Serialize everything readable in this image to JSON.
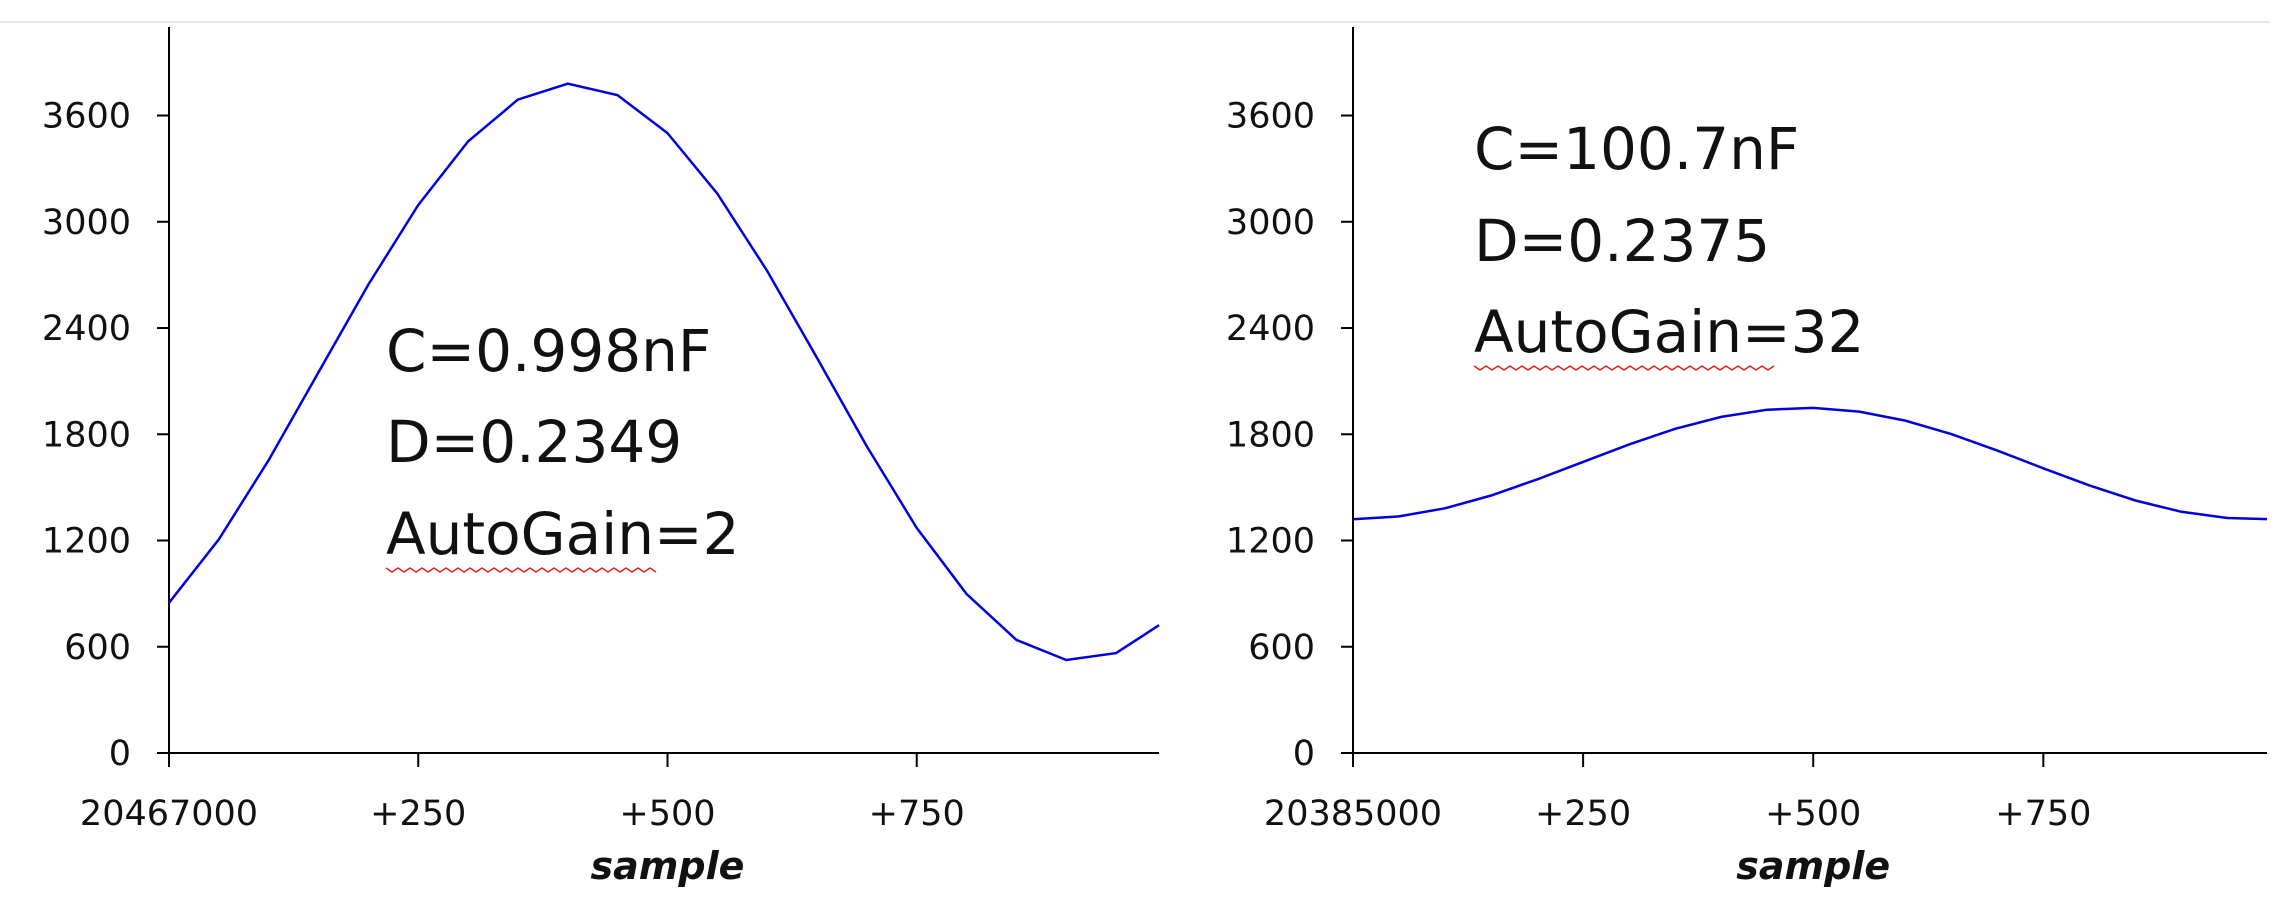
{
  "chart_data": [
    {
      "type": "line",
      "xlabel": "sample",
      "annotations": [
        "C=0.998nF",
        "D=0.2349",
        "AutoGain=2"
      ],
      "x": [
        20467000,
        20467050,
        20467100,
        20467150,
        20467200,
        20467250,
        20467300,
        20467350,
        20467400,
        20467450,
        20467500,
        20467550,
        20467600,
        20467650,
        20467700,
        20467750,
        20467800,
        20467850,
        20467900,
        20467950,
        20467993
      ],
      "series": [
        {
          "name": "signal",
          "color": "#0000e0",
          "values": [
            848,
            1206,
            1654,
            2150,
            2646,
            3094,
            3454,
            3690,
            3780,
            3715,
            3501,
            3159,
            2722,
            2231,
            1731,
            1271,
            898,
            639,
            525,
            564,
            722
          ]
        }
      ],
      "xlim": [
        20467000,
        20467993
      ],
      "xticks": [
        20467000,
        {
          "value": 20467250,
          "label": "+250"
        },
        {
          "value": 20467500,
          "label": "+500"
        },
        {
          "value": 20467750,
          "label": "+750"
        }
      ],
      "ylim": [
        0,
        4100
      ],
      "yticks": [
        0,
        600,
        1200,
        1800,
        2400,
        3000,
        3600
      ]
    },
    {
      "type": "line",
      "xlabel": "sample",
      "annotations": [
        "C=100.7nF",
        "D=0.2375",
        "AutoGain=32"
      ],
      "x": [
        20385000,
        20385050,
        20385100,
        20385150,
        20385200,
        20385250,
        20385300,
        20385350,
        20385400,
        20385450,
        20385500,
        20385550,
        20385600,
        20385650,
        20385700,
        20385750,
        20385800,
        20385850,
        20385900,
        20385950,
        20385993
      ],
      "series": [
        {
          "name": "signal",
          "color": "#0000e0",
          "values": [
            1320,
            1336,
            1382,
            1454,
            1545,
            1644,
            1743,
            1831,
            1898,
            1939,
            1949,
            1928,
            1877,
            1801,
            1708,
            1608,
            1511,
            1426,
            1362,
            1327,
            1321
          ]
        }
      ],
      "xlim": [
        20385000,
        20385993
      ],
      "xticks": [
        20385000,
        {
          "value": 20385250,
          "label": "+250"
        },
        {
          "value": 20385500,
          "label": "+500"
        },
        {
          "value": 20385750,
          "label": "+750"
        }
      ],
      "ylim": [
        0,
        4100
      ],
      "yticks": [
        0,
        600,
        1200,
        1800,
        2400,
        3000,
        3600
      ]
    }
  ]
}
